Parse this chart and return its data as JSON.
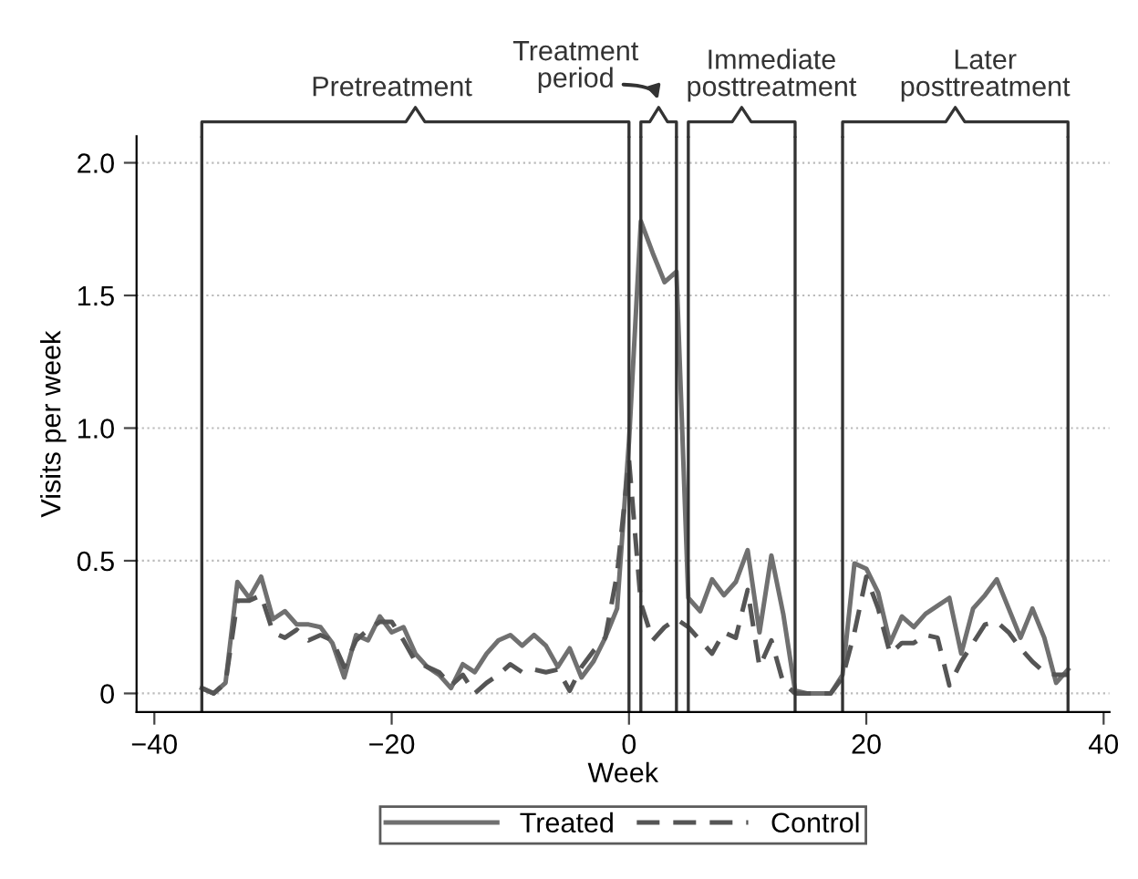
{
  "chart_data": {
    "type": "line",
    "xlabel": "Week",
    "ylabel": "Visits per week",
    "x": [
      -36,
      -35,
      -34,
      -33,
      -32,
      -31,
      -30,
      -29,
      -28,
      -27,
      -26,
      -25,
      -24,
      -23,
      -22,
      -21,
      -20,
      -19,
      -18,
      -17,
      -16,
      -15,
      -14,
      -13,
      -12,
      -11,
      -10,
      -9,
      -8,
      -7,
      -6,
      -5,
      -4,
      -3,
      -2,
      -1,
      0,
      1,
      2,
      3,
      4,
      5,
      6,
      7,
      8,
      9,
      10,
      11,
      12,
      13,
      14,
      15,
      16,
      17,
      18,
      19,
      20,
      21,
      22,
      23,
      24,
      25,
      26,
      27,
      28,
      29,
      30,
      31,
      32,
      33,
      34,
      35,
      36,
      37
    ],
    "series": [
      {
        "name": "Treated",
        "color": "#707070",
        "line_style": "solid",
        "values": [
          0.02,
          0,
          0.04,
          0.42,
          0.36,
          0.44,
          0.28,
          0.31,
          0.26,
          0.26,
          0.25,
          0.19,
          0.06,
          0.22,
          0.2,
          0.29,
          0.23,
          0.25,
          0.15,
          0.1,
          0.07,
          0.02,
          0.11,
          0.08,
          0.15,
          0.2,
          0.22,
          0.18,
          0.22,
          0.18,
          0.1,
          0.17,
          0.06,
          0.12,
          0.21,
          0.32,
          0.95,
          1.78,
          1.66,
          1.55,
          1.59,
          0.36,
          0.31,
          0.43,
          0.37,
          0.42,
          0.54,
          0.23,
          0.52,
          0.3,
          0.01,
          0,
          0,
          0,
          0.07,
          0.49,
          0.47,
          0.38,
          0.19,
          0.29,
          0.25,
          0.3,
          0.33,
          0.36,
          0.15,
          0.32,
          0.37,
          0.43,
          0.32,
          0.21,
          0.32,
          0.21,
          0.04,
          0.09
        ]
      },
      {
        "name": "Control",
        "color": "#555555",
        "line_style": "dashed",
        "values": [
          0.02,
          0,
          0.04,
          0.35,
          0.35,
          0.37,
          0.23,
          0.21,
          0.24,
          0.2,
          0.22,
          0.2,
          0.1,
          0.2,
          0.24,
          0.27,
          0.27,
          0.2,
          0.12,
          0.1,
          0.08,
          0.03,
          0.07,
          0,
          0.04,
          0.07,
          0.11,
          0.08,
          0.09,
          0.08,
          0.09,
          0.01,
          0.1,
          0.16,
          0.21,
          0.45,
          0.88,
          0.34,
          0.2,
          0.25,
          0.28,
          0.25,
          0.2,
          0.15,
          0.23,
          0.21,
          0.39,
          0.1,
          0.2,
          0.04,
          0,
          0,
          0,
          0,
          0.06,
          0.23,
          0.44,
          0.32,
          0.15,
          0.19,
          0.19,
          0.22,
          0.21,
          0.03,
          0.12,
          0.19,
          0.26,
          0.27,
          0.23,
          0.17,
          0.12,
          0.08,
          0.07,
          0.07
        ]
      }
    ],
    "ref_lines": [
      {
        "axis": "x",
        "value": -36,
        "color": "#333333"
      },
      {
        "axis": "x",
        "value": 0,
        "color": "#333333"
      },
      {
        "axis": "x",
        "value": 1,
        "color": "#333333"
      },
      {
        "axis": "x",
        "value": 4,
        "color": "#333333"
      },
      {
        "axis": "x",
        "value": 5,
        "color": "#333333"
      },
      {
        "axis": "x",
        "value": 14,
        "color": "#333333"
      },
      {
        "axis": "x",
        "value": 18,
        "color": "#333333"
      },
      {
        "axis": "x",
        "value": 37,
        "color": "#333333"
      }
    ],
    "annotations": [
      "Pretreatment",
      "Treatment\nperiod",
      "Immediate\nposttreatment",
      "Later\nposttreatment"
    ],
    "xlim": [
      -41.5,
      40.5
    ],
    "ylim": [
      -0.07,
      2.1
    ],
    "xticks": [
      {
        "value": -40,
        "label": "−40"
      },
      {
        "value": -20,
        "label": "−20"
      },
      0,
      20,
      40
    ],
    "yticks": [
      0,
      0.5,
      {
        "value": 1,
        "label": "1.0"
      },
      1.5,
      {
        "value": 2,
        "label": "2.0"
      }
    ],
    "grid": "y",
    "legend": "bottom"
  }
}
